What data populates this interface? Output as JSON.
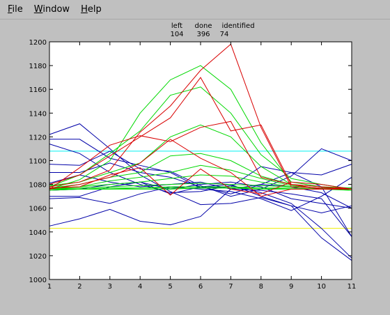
{
  "menu": {
    "items": [
      {
        "mnemonic": "F",
        "rest": "ile"
      },
      {
        "mnemonic": "W",
        "rest": "indow"
      },
      {
        "mnemonic": "H",
        "rest": "elp"
      }
    ]
  },
  "status": {
    "left_label": "left",
    "done_label": "done",
    "identified_label": "identified",
    "left_value": "104",
    "done_value": "396",
    "identified_value": "74"
  },
  "colors": {
    "background": "#c0c0c0",
    "plot_background": "#ffffff",
    "blue": "#0000a8",
    "green": "#00d800",
    "red": "#d80000",
    "cyan": "#00f0f0",
    "yellow": "#f0f000"
  },
  "chart_data": {
    "type": "line",
    "title": "",
    "xlabel": "",
    "ylabel": "",
    "xlim": [
      1,
      11
    ],
    "ylim": [
      1000,
      1200
    ],
    "x": [
      1,
      2,
      3,
      4,
      5,
      6,
      7,
      8,
      9,
      10,
      11
    ],
    "xticks": [
      "1",
      "2",
      "3",
      "4",
      "5",
      "6",
      "7",
      "8",
      "9",
      "10",
      "11"
    ],
    "yticks": [
      "1000",
      "1020",
      "1040",
      "1060",
      "1080",
      "1100",
      "1120",
      "1140",
      "1160",
      "1180",
      "1200"
    ],
    "hlines": [
      {
        "color": "cyan",
        "y": 1108
      },
      {
        "color": "yellow",
        "y": 1043
      }
    ],
    "series": [
      {
        "color": "blue",
        "values": [
          1122,
          1131,
          1110,
          1088,
          1074,
          1063,
          1064,
          1069,
          1062,
          1035,
          1016
        ]
      },
      {
        "color": "blue",
        "values": [
          1118,
          1118,
          1102,
          1096,
          1090,
          1077,
          1078,
          1095,
          1090,
          1088,
          1097
        ]
      },
      {
        "color": "blue",
        "values": [
          1114,
          1106,
          1090,
          1080,
          1073,
          1074,
          1079,
          1073,
          1064,
          1043,
          1018
        ]
      },
      {
        "color": "blue",
        "values": [
          1097,
          1096,
          1108,
          1093,
          1091,
          1079,
          1070,
          1076,
          1087,
          1110,
          1100
        ]
      },
      {
        "color": "blue",
        "values": [
          1090,
          1090,
          1098,
          1090,
          1086,
          1078,
          1072,
          1080,
          1078,
          1073,
          1060
        ]
      },
      {
        "color": "blue",
        "values": [
          1081,
          1088,
          1082,
          1078,
          1080,
          1082,
          1076,
          1075,
          1072,
          1068,
          1036
        ]
      },
      {
        "color": "blue",
        "values": [
          1075,
          1076,
          1080,
          1082,
          1076,
          1080,
          1082,
          1078,
          1068,
          1064,
          1060
        ]
      },
      {
        "color": "blue",
        "values": [
          1070,
          1070,
          1078,
          1082,
          1072,
          1078,
          1080,
          1070,
          1062,
          1056,
          1062
        ]
      },
      {
        "color": "blue",
        "values": [
          1068,
          1069,
          1064,
          1072,
          1078,
          1076,
          1074,
          1068,
          1058,
          1070,
          1086
        ]
      },
      {
        "color": "blue",
        "values": [
          1045,
          1051,
          1059,
          1049,
          1046,
          1053,
          1076,
          1080,
          1090,
          1078,
          1036
        ]
      },
      {
        "color": "green",
        "values": [
          1076,
          1084,
          1100,
          1140,
          1168,
          1180,
          1160,
          1115,
          1082,
          1078,
          1075
        ]
      },
      {
        "color": "green",
        "values": [
          1078,
          1088,
          1106,
          1125,
          1155,
          1162,
          1140,
          1105,
          1085,
          1080,
          1076
        ]
      },
      {
        "color": "green",
        "values": [
          1079,
          1082,
          1090,
          1098,
          1120,
          1130,
          1120,
          1095,
          1080,
          1078,
          1077
        ]
      },
      {
        "color": "green",
        "values": [
          1077,
          1080,
          1086,
          1090,
          1104,
          1106,
          1100,
          1087,
          1080,
          1076,
          1076
        ]
      },
      {
        "color": "green",
        "values": [
          1076,
          1078,
          1083,
          1086,
          1090,
          1096,
          1092,
          1085,
          1079,
          1076,
          1076
        ]
      },
      {
        "color": "green",
        "values": [
          1077,
          1078,
          1080,
          1082,
          1085,
          1088,
          1087,
          1082,
          1078,
          1077,
          1077
        ]
      },
      {
        "color": "green",
        "values": [
          1076,
          1077,
          1078,
          1079,
          1080,
          1081,
          1080,
          1079,
          1078,
          1077,
          1077
        ]
      },
      {
        "color": "green",
        "values": [
          1076,
          1076,
          1077,
          1077,
          1078,
          1078,
          1078,
          1077,
          1077,
          1076,
          1076
        ]
      },
      {
        "color": "green",
        "values": [
          1075,
          1076,
          1076,
          1076,
          1076,
          1077,
          1077,
          1076,
          1076,
          1076,
          1076
        ]
      },
      {
        "color": "green",
        "values": [
          1076,
          1076,
          1076,
          1077,
          1077,
          1077,
          1077,
          1077,
          1076,
          1076,
          1075
        ]
      },
      {
        "color": "red",
        "values": [
          1080,
          1088,
          1104,
          1120,
          1136,
          1170,
          1125,
          1130,
          1080,
          1078,
          1076
        ]
      },
      {
        "color": "red",
        "values": [
          1076,
          1094,
          1113,
          1121,
          1116,
          1128,
          1133,
          1086,
          1080,
          1076,
          1076
        ]
      },
      {
        "color": "red",
        "values": [
          1078,
          1082,
          1092,
          1124,
          1146,
          1176,
          1198,
          1128,
          1078,
          1077,
          1076
        ]
      },
      {
        "color": "red",
        "values": [
          1077,
          1078,
          1088,
          1094,
          1071,
          1093,
          1076,
          1072,
          1082,
          1080,
          1076
        ]
      },
      {
        "color": "red",
        "values": [
          1076,
          1080,
          1086,
          1098,
          1118,
          1102,
          1090,
          1070,
          1076,
          1076,
          1076
        ]
      }
    ]
  }
}
